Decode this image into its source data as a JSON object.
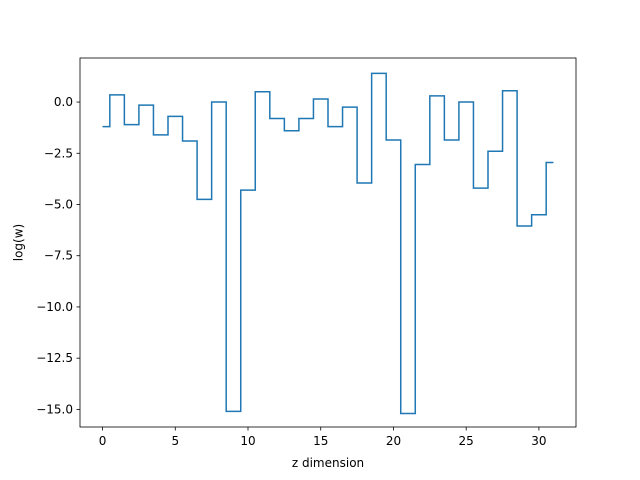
{
  "chart_data": {
    "type": "line",
    "drawstyle": "steps-mid",
    "title": "",
    "xlabel": "z dimension",
    "ylabel": "log(w)",
    "xlim": [
      -1.55,
      32.55
    ],
    "ylim": [
      -15.86,
      2.15
    ],
    "xticks": [
      0,
      5,
      10,
      15,
      20,
      25,
      30
    ],
    "xtick_labels": [
      "0",
      "5",
      "10",
      "15",
      "20",
      "25",
      "30"
    ],
    "yticks": [
      0.0,
      -2.5,
      -5.0,
      -7.5,
      -10.0,
      -12.5,
      -15.0
    ],
    "ytick_labels": [
      "0.0",
      "−2.5",
      "−5.0",
      "−7.5",
      "−10.0",
      "−12.5",
      "−15.0"
    ],
    "grid": false,
    "line_color": "#1f77b4",
    "series": [
      {
        "x": [
          0,
          1,
          2,
          3,
          4,
          5,
          6,
          7,
          8,
          9,
          10,
          11,
          12,
          13,
          14,
          15,
          16,
          17,
          18,
          19,
          20,
          21,
          22,
          23,
          24,
          25,
          26,
          27,
          28,
          29,
          30,
          31
        ],
        "values": [
          -1.2,
          0.35,
          -1.1,
          -0.15,
          -1.6,
          -0.7,
          -1.9,
          -4.75,
          0.0,
          -15.1,
          -4.3,
          0.5,
          -0.8,
          -1.4,
          -0.8,
          0.15,
          -1.2,
          -0.25,
          -3.95,
          1.4,
          -1.85,
          -15.2,
          -3.05,
          0.3,
          -1.85,
          0.0,
          -4.2,
          -2.4,
          0.55,
          -6.05,
          -5.5,
          -2.95
        ]
      }
    ]
  }
}
